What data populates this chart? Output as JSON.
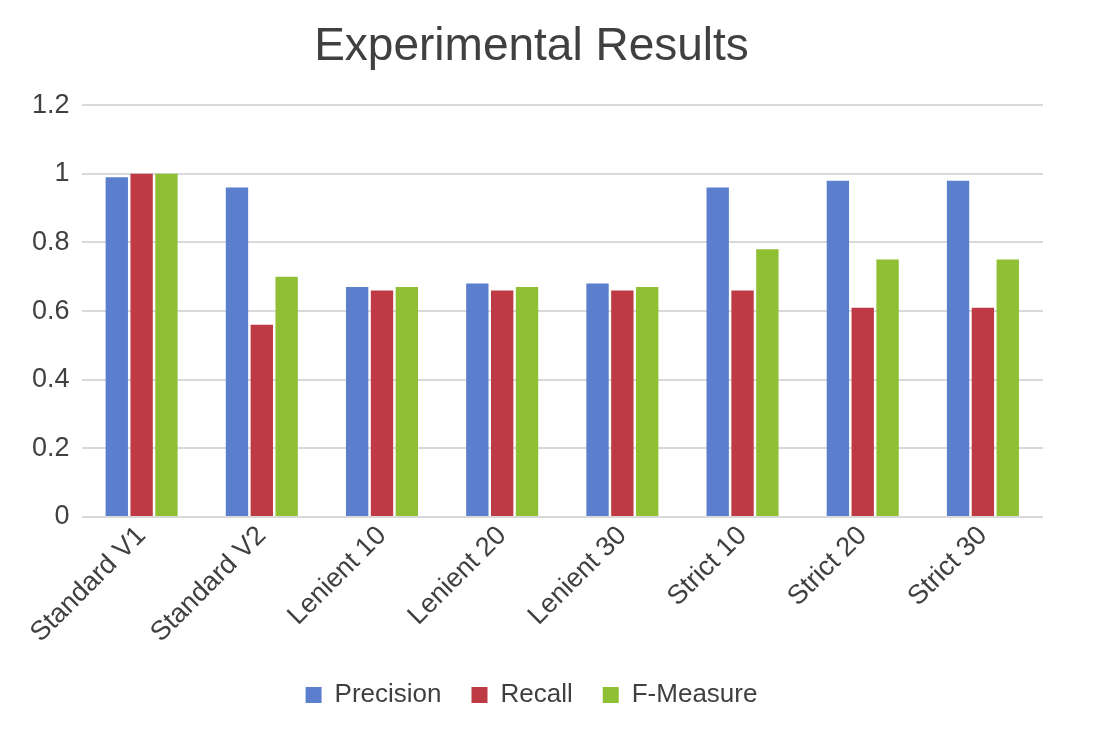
{
  "chart_data": {
    "type": "bar",
    "title": "Experimental Results",
    "categories": [
      "Standard V1",
      "Standard V2",
      "Lenient 10",
      "Lenient 20",
      "Lenient 30",
      "Strict 10",
      "Strict 20",
      "Strict 30"
    ],
    "series": [
      {
        "name": "Precision",
        "color": "#5b7fcc",
        "values": [
          0.99,
          0.96,
          0.67,
          0.68,
          0.68,
          0.96,
          0.98,
          0.98
        ]
      },
      {
        "name": "Recall",
        "color": "#be3a45",
        "values": [
          1.0,
          0.56,
          0.66,
          0.66,
          0.66,
          0.66,
          0.61,
          0.61
        ]
      },
      {
        "name": "F-Measure",
        "color": "#8fbf33",
        "values": [
          1.0,
          0.7,
          0.67,
          0.67,
          0.67,
          0.78,
          0.75,
          0.75
        ]
      }
    ],
    "ylim": [
      0,
      1.2
    ],
    "yticks": [
      0,
      0.2,
      0.4,
      0.6,
      0.8,
      1,
      1.2
    ],
    "grid": "y",
    "legend": "bottom"
  }
}
